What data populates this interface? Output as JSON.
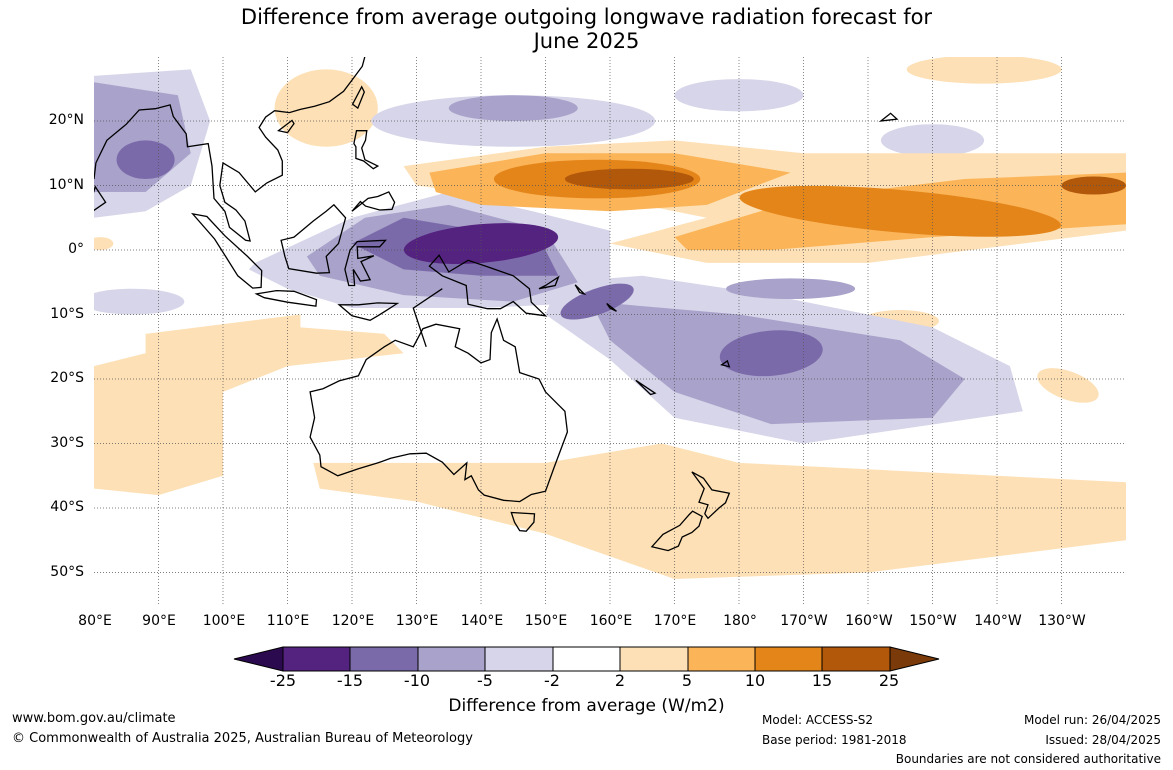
{
  "title": {
    "line1": "Difference from average outgoing longwave radiation forecast for",
    "line2": "June 2025"
  },
  "map": {
    "lat_labels": [
      "20°N",
      "10°N",
      "0°",
      "10°S",
      "20°S",
      "30°S",
      "40°S",
      "50°S"
    ],
    "lon_labels": [
      "80°E",
      "90°E",
      "100°E",
      "110°E",
      "120°E",
      "130°E",
      "140°E",
      "150°E",
      "160°E",
      "170°E",
      "180°",
      "170°W",
      "160°W",
      "150°W",
      "140°W",
      "130°W"
    ],
    "colors": {
      "neg_25": "#2b0a4f",
      "neg_15": "#54237f",
      "neg_10": "#7b6aa9",
      "neg_5": "#a9a2ca",
      "neg_2": "#d6d5e9",
      "zero": "#ffffff",
      "pos_2": "#fde0b5",
      "pos_5": "#fbb458",
      "pos_10": "#e4851a",
      "pos_15": "#b2580b",
      "pos_25": "#7a3a09"
    }
  },
  "colorbar": {
    "labels": [
      "-25",
      "-15",
      "-10",
      "-5",
      "-2",
      "2",
      "5",
      "10",
      "15",
      "25"
    ],
    "title": "Difference from average (W/m2)"
  },
  "footer": {
    "website": "www.bom.gov.au/climate",
    "copyright": "© Commonwealth of Australia 2025, Australian Bureau of Meteorology",
    "model": "Model: ACCESS-S2",
    "base_period": "Base period: 1981-2018",
    "model_run": "Model run: 26/04/2025",
    "issued": "Issued: 28/04/2025",
    "boundaries": "Boundaries are not considered authoritative"
  }
}
